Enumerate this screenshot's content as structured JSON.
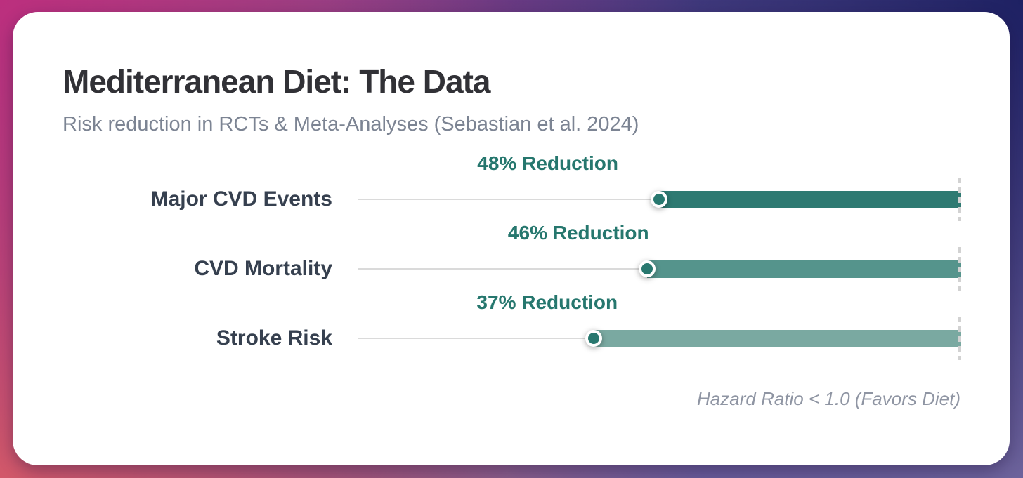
{
  "chart_data": {
    "type": "bar",
    "orientation": "horizontal",
    "title": "Mediterranean Diet: The Data",
    "subtitle": "Risk reduction in RCTs & Meta-Analyses (Sebastian et al. 2024)",
    "categories": [
      "Major CVD Events",
      "CVD Mortality",
      "Stroke Risk"
    ],
    "values": [
      48,
      46,
      37
    ],
    "value_labels": [
      "48% Reduction",
      "46% Reduction",
      "37% Reduction"
    ],
    "axis_note": "Hazard Ratio < 1.0 (Favors Diet)",
    "xlim": [
      0,
      100
    ],
    "grid": false,
    "legend_position": "none",
    "colors": {
      "bars": [
        "#2e7a72",
        "#55948c",
        "#7aa9a1"
      ],
      "marker": "#28786f",
      "annotation_text": "#26776e",
      "category_label": "#36404f",
      "track_line": "#dadada",
      "reference_dash": "#d2d2d2",
      "title_text": "#313136",
      "subtitle_text": "#7c8493",
      "footnote_text": "#8f95a3",
      "background_corners": {
        "top_left": "#bc2f7e",
        "top_right": "#1e2163",
        "bottom_left": "#dc6c60",
        "bottom_right": "#9282b6"
      }
    },
    "layout": {
      "marker_x_pct": [
        50.0,
        48.0,
        39.1
      ],
      "annotation_x_pct": [
        31.5,
        36.6,
        31.4
      ]
    }
  }
}
